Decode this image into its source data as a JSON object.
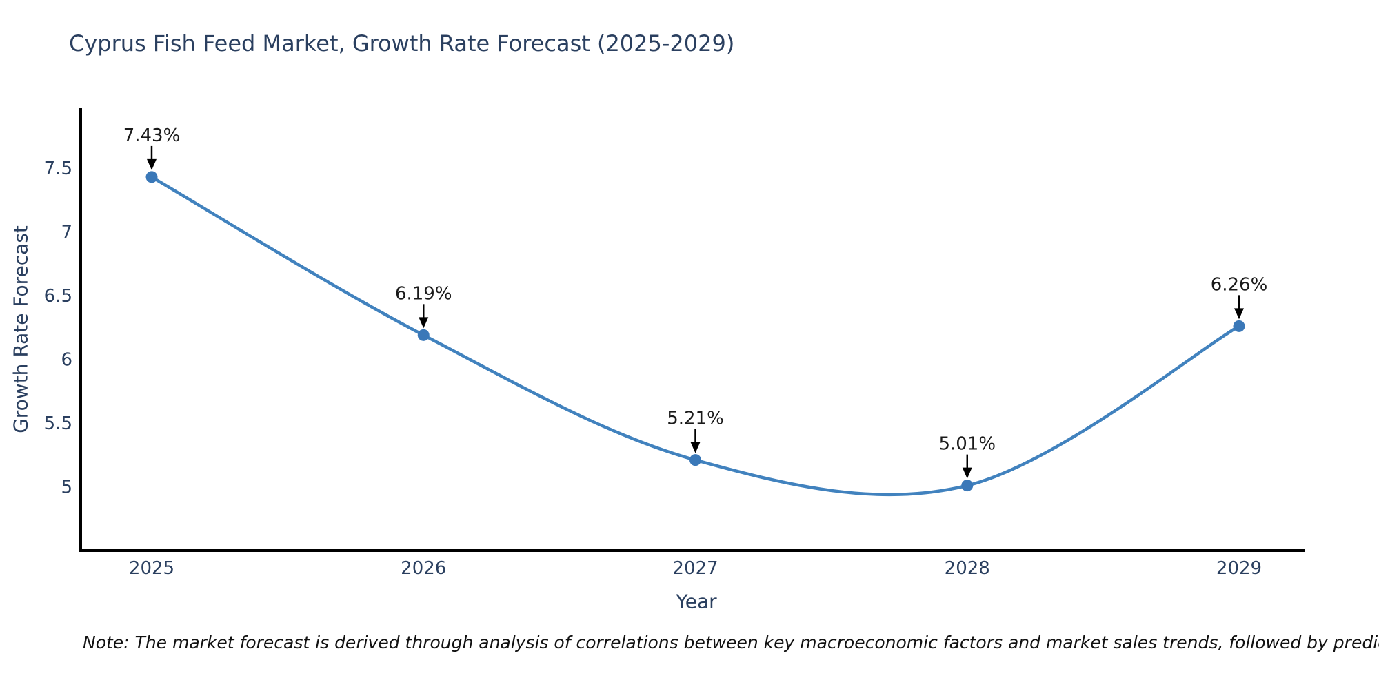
{
  "chart": {
    "title": "Cyprus Fish Feed Market, Growth Rate Forecast (2025-2029)",
    "xlabel": "Year",
    "ylabel": "Growth Rate Forecast",
    "note": "Note: The market forecast is derived through analysis of correlations between key macroeconomic factors and market sales trends, followed by predictive modeling to project future sales"
  },
  "chart_data": {
    "type": "line",
    "title": "Cyprus Fish Feed Market, Growth Rate Forecast (2025-2029)",
    "xlabel": "Year",
    "ylabel": "Growth Rate Forecast",
    "categories": [
      "2025",
      "2026",
      "2027",
      "2028",
      "2029"
    ],
    "series": [
      {
        "name": "Growth Rate Forecast",
        "values": [
          7.43,
          6.19,
          5.21,
          5.01,
          6.26
        ]
      }
    ],
    "point_labels": [
      "7.43%",
      "6.19%",
      "5.21%",
      "5.01%",
      "6.26%"
    ],
    "ytick_labels": [
      "7.5",
      "7",
      "6.5",
      "6",
      "5.5",
      "5"
    ],
    "ytick_values": [
      7.5,
      7,
      6.5,
      6,
      5.5,
      5
    ],
    "ylim": [
      4.5,
      7.97
    ],
    "line_shape": "spline",
    "grid": false,
    "legend": "none",
    "annotation_arrows": true,
    "colors": {
      "line": "#4182be",
      "marker": "#3a78b8",
      "axis": "#000000",
      "tick_text": "#2a3f5f",
      "annotation_text": "#1a1a1a",
      "background": "#ffffff"
    }
  }
}
